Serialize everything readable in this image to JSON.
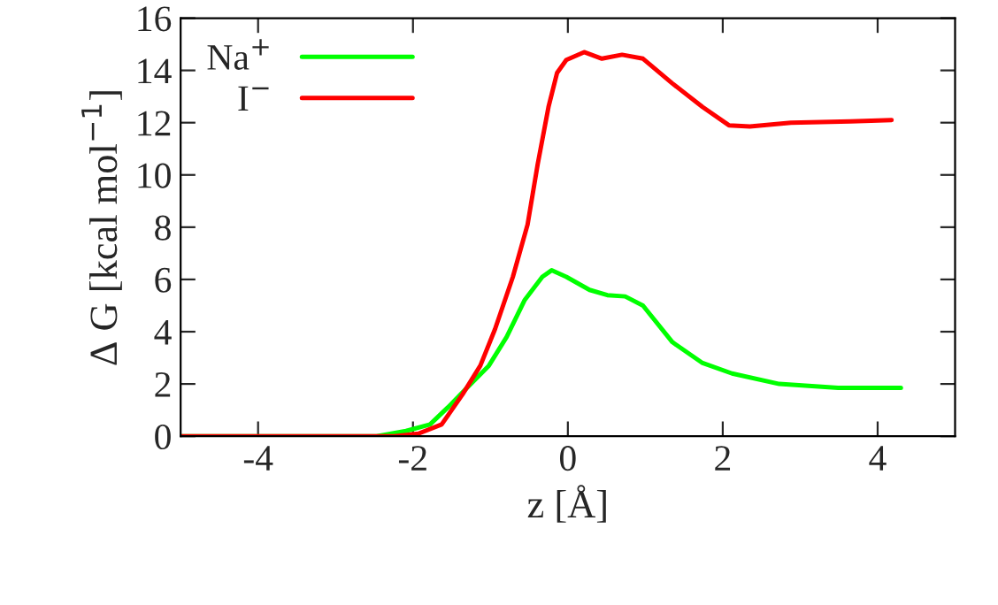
{
  "chart_data": {
    "type": "line",
    "xlabel": "z [Å]",
    "ylabel": "Δ G [kcal mol$^{−1}$]",
    "xlim": [
      -5,
      5
    ],
    "xticks": [
      -4,
      -2,
      0,
      2,
      4
    ],
    "ylim": [
      0,
      16
    ],
    "yticks": [
      0,
      2,
      4,
      6,
      8,
      10,
      12,
      14,
      16
    ],
    "grid": false,
    "legend": "top left",
    "series": [
      {
        "name": "Na$^{+}$",
        "color": "#00ff00",
        "x": [
          -5,
          -2.47,
          -2.09,
          -1.78,
          -1.55,
          -1.32,
          -1.02,
          -0.79,
          -0.56,
          -0.33,
          -0.21,
          -0.02,
          0.28,
          0.51,
          0.74,
          0.97,
          1.35,
          1.74,
          2.12,
          2.73,
          3.49,
          4.3
        ],
        "values": [
          0,
          0,
          0.2,
          0.45,
          1.1,
          1.8,
          2.7,
          3.8,
          5.2,
          6.1,
          6.35,
          6.1,
          5.6,
          5.4,
          5.35,
          5.0,
          3.6,
          2.8,
          2.4,
          2.0,
          1.85,
          1.85
        ]
      },
      {
        "name": "I$^{−}$",
        "color": "#ff0000",
        "x": [
          -5,
          -2.24,
          -1.93,
          -1.63,
          -1.36,
          -1.13,
          -0.94,
          -0.71,
          -0.52,
          -0.39,
          -0.25,
          -0.14,
          -0.02,
          0.21,
          0.44,
          0.7,
          0.97,
          1.35,
          1.74,
          2.08,
          2.35,
          2.88,
          3.65,
          4.18
        ],
        "values": [
          0,
          0,
          0.1,
          0.45,
          1.6,
          2.7,
          4.1,
          6.1,
          8.1,
          10.4,
          12.6,
          13.9,
          14.4,
          14.7,
          14.45,
          14.6,
          14.45,
          13.5,
          12.6,
          11.9,
          11.85,
          12.0,
          12.05,
          12.1
        ]
      }
    ]
  }
}
